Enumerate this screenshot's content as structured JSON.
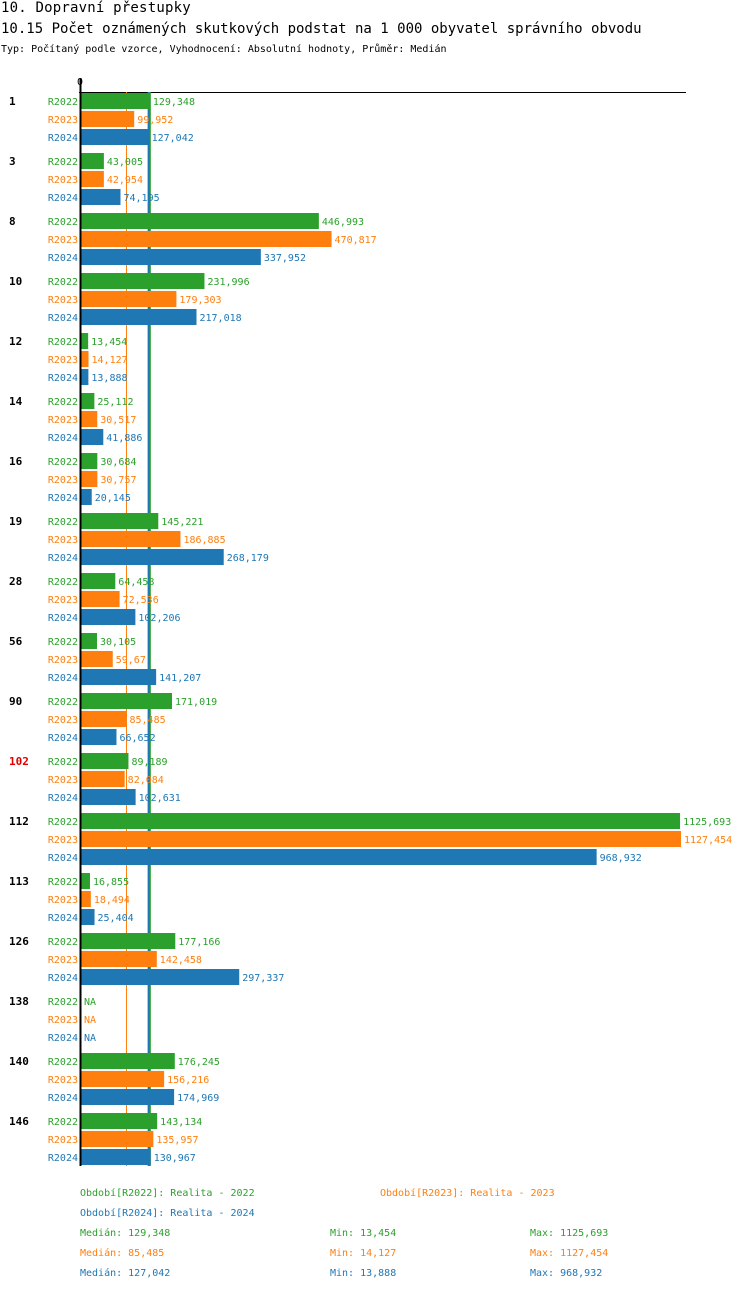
{
  "header": {
    "title": "10. Dopravní přestupky",
    "subtitle": "10.15 Počet oznámených skutkových podstat na 1 000 obyvatel správního obvodu",
    "meta": "Typ: Počítaný podle vzorce, Vyhodnocení: Absolutní hodnoty, Průměr: Medián"
  },
  "colors": {
    "R2022": "#2ca02c",
    "R2023": "#ff7f0e",
    "R2024": "#1f77b4",
    "highlight": "#e00000"
  },
  "chart_data": {
    "type": "bar",
    "orientation": "horizontal",
    "title": "10.15 Počet oznámených skutkových podstat na 1 000 obyvatel správního obvodu",
    "xlabel": "",
    "ylabel": "",
    "x_tick_labels": [
      "0"
    ],
    "xlim": [
      0,
      1127.454
    ],
    "series_names": [
      "R2022",
      "R2023",
      "R2024"
    ],
    "categories": [
      "1",
      "3",
      "8",
      "10",
      "12",
      "14",
      "16",
      "19",
      "28",
      "56",
      "90",
      "102",
      "112",
      "113",
      "126",
      "138",
      "140",
      "146"
    ],
    "highlighted_category": "102",
    "series": [
      {
        "name": "R2022",
        "values": [
          129.348,
          43.005,
          446.993,
          231.996,
          13.454,
          25.112,
          30.684,
          145.221,
          64.458,
          30.105,
          171.019,
          89.189,
          1125.693,
          16.855,
          177.166,
          null,
          176.245,
          143.134
        ],
        "labels": [
          "129,348",
          "43,005",
          "446,993",
          "231,996",
          "13,454",
          "25,112",
          "30,684",
          "145,221",
          "64,458",
          "30,105",
          "171,019",
          "89,189",
          "1125,693",
          "16,855",
          "177,166",
          "NA",
          "176,245",
          "143,134"
        ]
      },
      {
        "name": "R2023",
        "values": [
          99.952,
          42.954,
          470.817,
          179.303,
          14.127,
          30.517,
          30.757,
          186.885,
          72.536,
          59.67,
          85.485,
          82.084,
          1127.454,
          18.494,
          142.458,
          null,
          156.216,
          135.957
        ],
        "labels": [
          "99,952",
          "42,954",
          "470,817",
          "179,303",
          "14,127",
          "30,517",
          "30,757",
          "186,885",
          "72,536",
          "59,67",
          "85,485",
          "82,084",
          "1127,454",
          "18,494",
          "142,458",
          "NA",
          "156,216",
          "135,957"
        ]
      },
      {
        "name": "R2024",
        "values": [
          127.042,
          74.195,
          337.952,
          217.018,
          13.888,
          41.886,
          20.145,
          268.179,
          102.206,
          141.207,
          66.652,
          102.631,
          968.932,
          25.404,
          297.337,
          null,
          174.969,
          130.967
        ],
        "labels": [
          "127,042",
          "74,195",
          "337,952",
          "217,018",
          "13,888",
          "41,886",
          "20,145",
          "268,179",
          "102,206",
          "141,207",
          "66,652",
          "102,631",
          "968,932",
          "25,404",
          "297,337",
          "NA",
          "174,969",
          "130,967"
        ]
      }
    ],
    "median_lines": {
      "R2022": 129.348,
      "R2023": 85.485,
      "R2024": 127.042
    },
    "legend": {
      "placement": "bottom",
      "periods": [
        {
          "series": "R2022",
          "text": "Období[R2022]: Realita - 2022"
        },
        {
          "series": "R2023",
          "text": "Období[R2023]: Realita - 2023"
        },
        {
          "series": "R2024",
          "text": "Období[R2024]: Realita - 2024"
        }
      ],
      "stats": [
        {
          "series": "R2022",
          "median": "Medián: 129,348",
          "min": "Min: 13,454",
          "max": "Max: 1125,693"
        },
        {
          "series": "R2023",
          "median": "Medián: 85,485",
          "min": "Min: 14,127",
          "max": "Max: 1127,454"
        },
        {
          "series": "R2024",
          "median": "Medián: 127,042",
          "min": "Min: 13,888",
          "max": "Max: 968,932"
        }
      ]
    }
  }
}
